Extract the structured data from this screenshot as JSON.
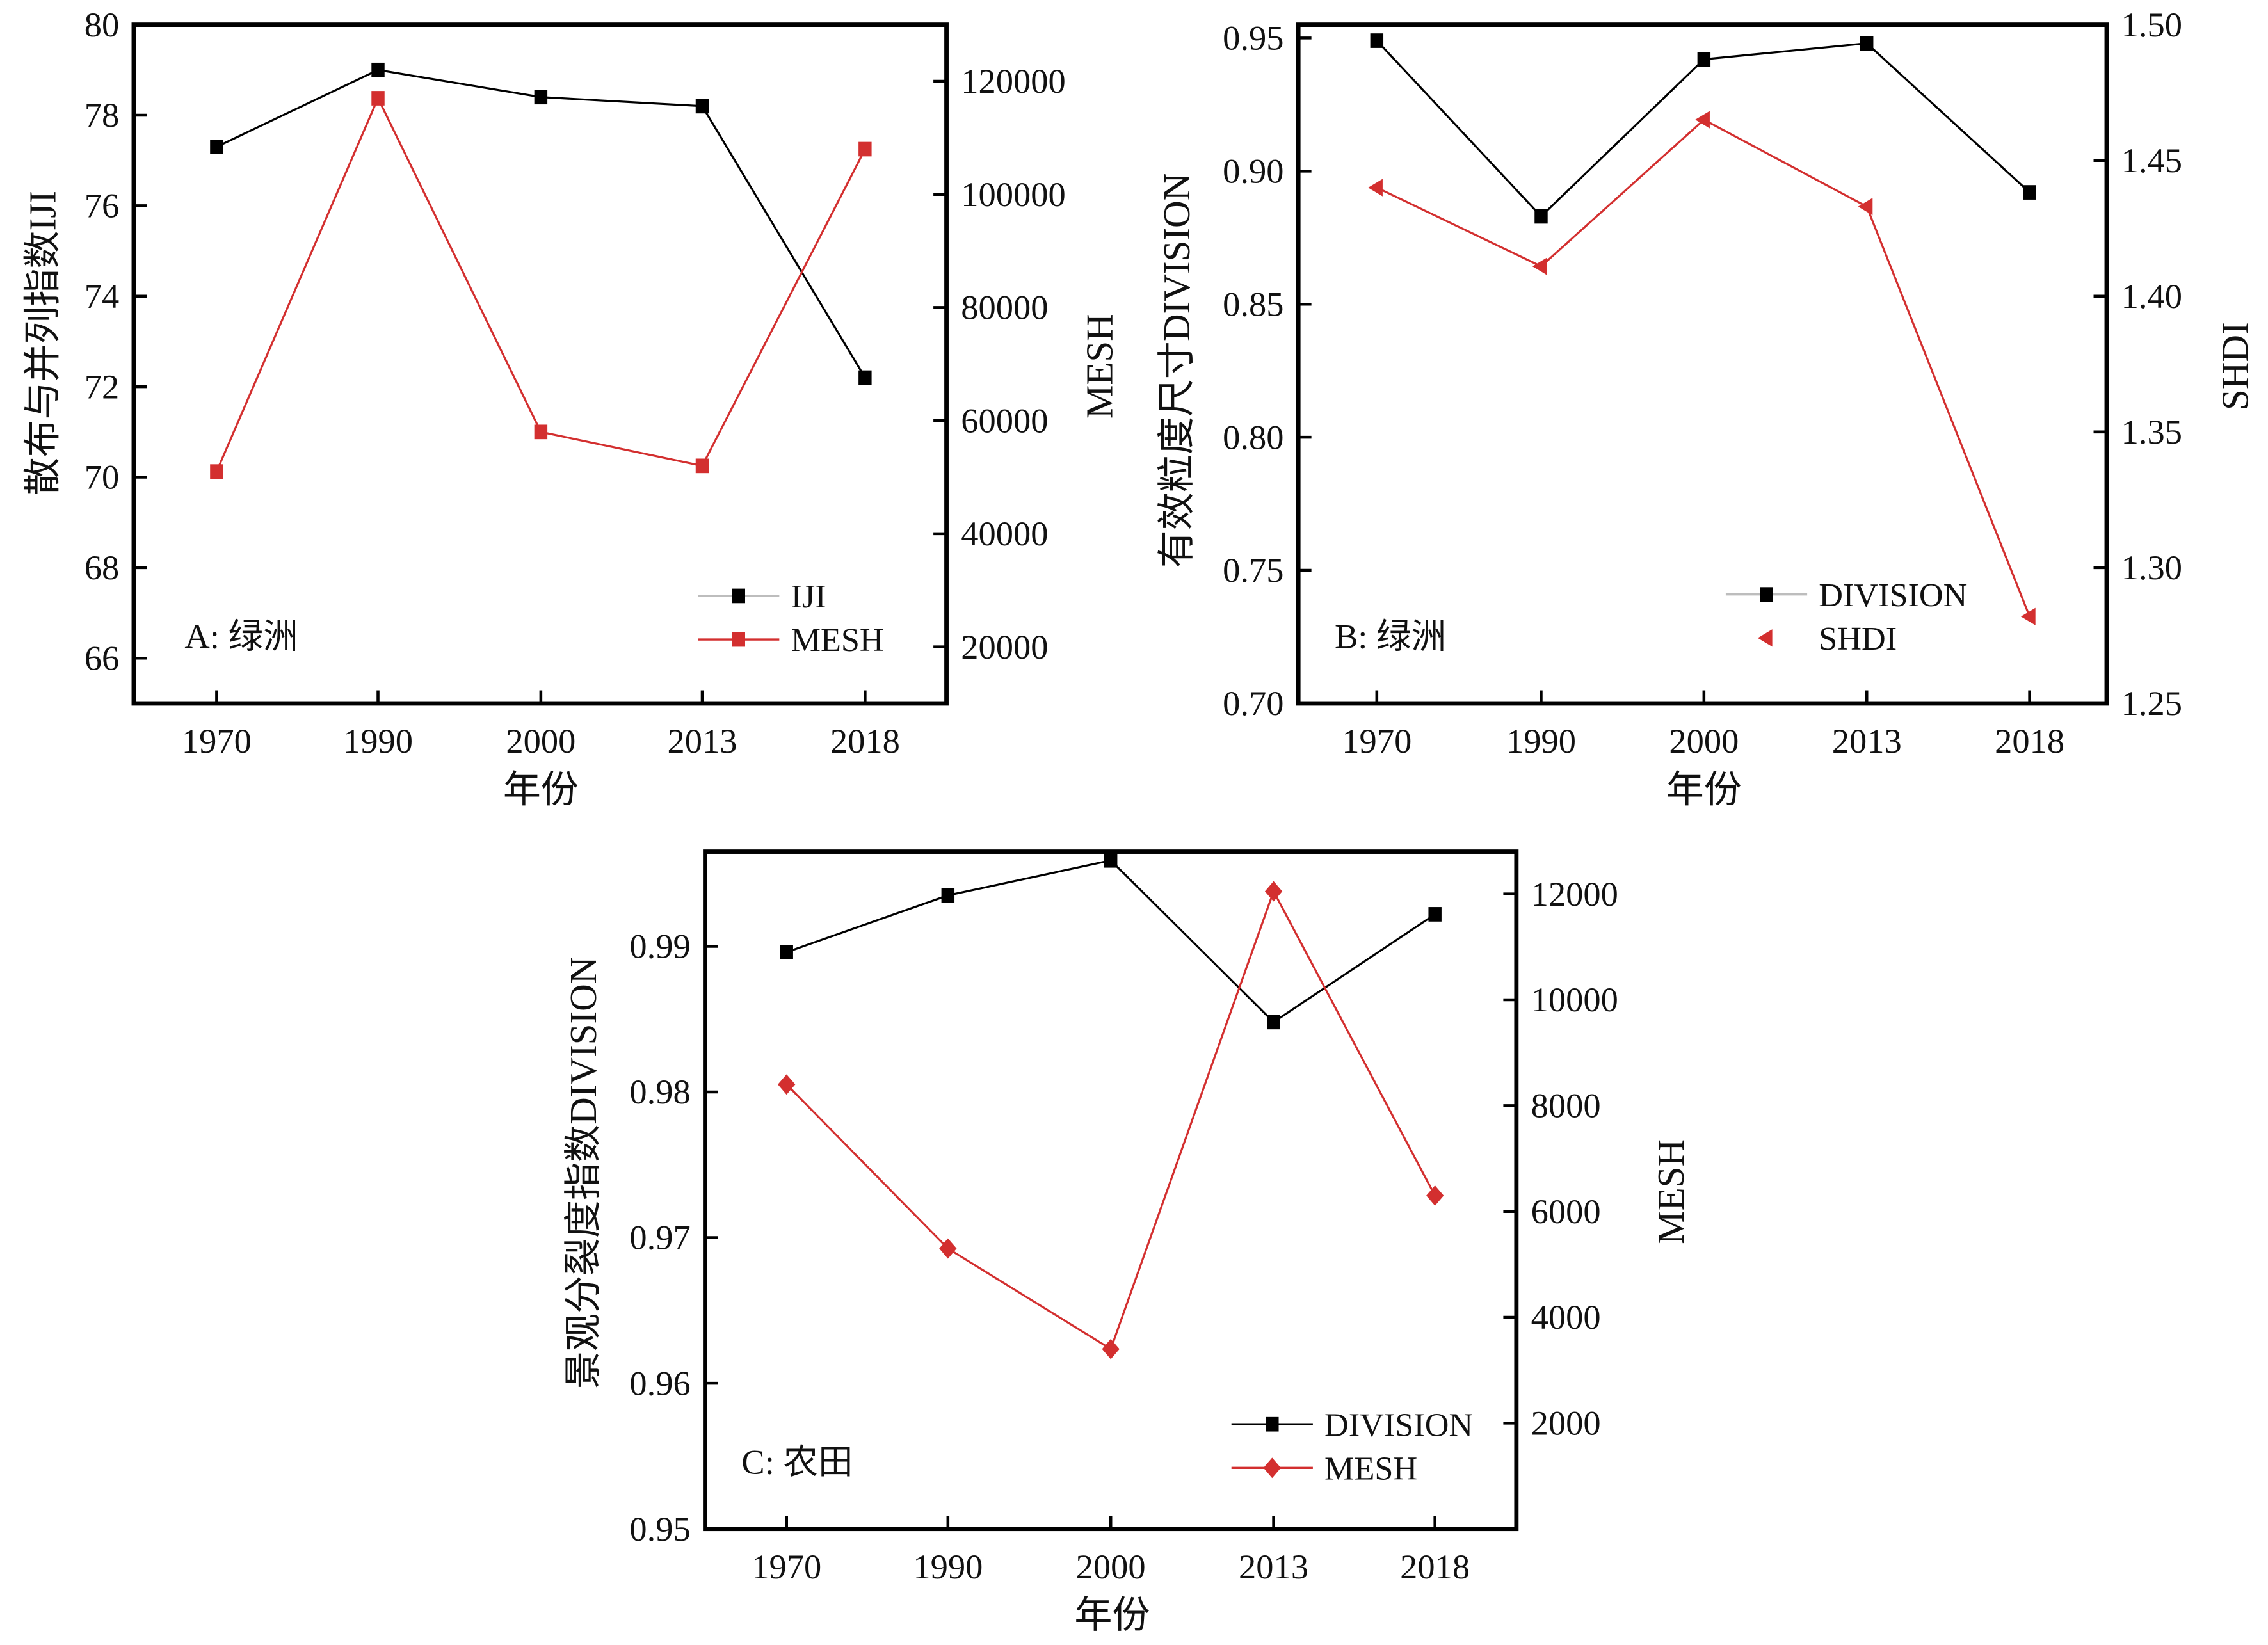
{
  "chart_data": [
    {
      "id": "A",
      "type": "line",
      "panel_label": "A: 绿洲",
      "categories": [
        "1970",
        "1990",
        "2000",
        "2013",
        "2018"
      ],
      "xlabel": "年份",
      "ylabel": "散布与并列指数IJI",
      "y2label": "MESH",
      "ylim": [
        65,
        80
      ],
      "y2lim": [
        10000,
        130000
      ],
      "yticks": [
        66,
        68,
        70,
        72,
        74,
        76,
        78,
        80
      ],
      "y2ticks": [
        20000,
        40000,
        60000,
        80000,
        100000,
        120000
      ],
      "series": [
        {
          "name": "IJI",
          "axis": "left",
          "color": "#000000",
          "marker": "square",
          "line_color": "#000000",
          "values": [
            77.3,
            79.0,
            78.4,
            78.2,
            72.2
          ]
        },
        {
          "name": "MESH",
          "axis": "right",
          "color": "#d32f2f",
          "marker": "square",
          "line_color": "#d32f2f",
          "values": [
            51000,
            117000,
            58000,
            52000,
            108000
          ]
        }
      ],
      "legend_position": "bottom-right",
      "grid": false
    },
    {
      "id": "B",
      "type": "line",
      "panel_label": "B: 绿洲",
      "categories": [
        "1970",
        "1990",
        "2000",
        "2013",
        "2018"
      ],
      "xlabel": "年份",
      "ylabel": "有效粒度尺寸DIVISION",
      "y2label": "SHDI",
      "ylim": [
        0.7,
        0.955
      ],
      "y2lim": [
        1.25,
        1.5
      ],
      "yticks": [
        "0.70",
        "0.75",
        "0.80",
        "0.85",
        "0.90",
        "0.95"
      ],
      "y2ticks": [
        "1.25",
        "1.30",
        "1.35",
        "1.40",
        "1.45",
        "1.50"
      ],
      "series": [
        {
          "name": "DIVISION",
          "axis": "left",
          "color": "#000000",
          "marker": "square",
          "line_color": "#000000",
          "values": [
            0.949,
            0.883,
            0.942,
            0.948,
            0.892
          ]
        },
        {
          "name": "SHDI",
          "axis": "right",
          "color": "#d32f2f",
          "marker": "triangle-left",
          "line_color": "#d32f2f",
          "values": [
            1.44,
            1.411,
            1.465,
            1.433,
            1.282
          ]
        }
      ],
      "legend_position": "bottom-right",
      "grid": false
    },
    {
      "id": "C",
      "type": "line",
      "panel_label": "C: 农田",
      "categories": [
        "1970",
        "1990",
        "2000",
        "2013",
        "2018"
      ],
      "xlabel": "年份",
      "ylabel": "景观分裂度指数DIVISION",
      "y2label": "MESH",
      "ylim": [
        0.95,
        0.9965
      ],
      "y2lim": [
        0,
        12800
      ],
      "yticks": [
        "0.95",
        "0.96",
        "0.97",
        "0.98",
        "0.99"
      ],
      "y2ticks": [
        2000,
        4000,
        6000,
        8000,
        10000,
        12000
      ],
      "series": [
        {
          "name": "DIVISION",
          "axis": "left",
          "color": "#000000",
          "marker": "square",
          "line_color": "#000000",
          "values": [
            0.9896,
            0.9935,
            0.9959,
            0.9848,
            0.9922
          ]
        },
        {
          "name": "MESH",
          "axis": "right",
          "color": "#d32f2f",
          "marker": "diamond",
          "line_color": "#d32f2f",
          "values": [
            8400,
            5300,
            3400,
            12050,
            6300
          ]
        }
      ],
      "legend_position": "bottom-right",
      "grid": false
    }
  ]
}
